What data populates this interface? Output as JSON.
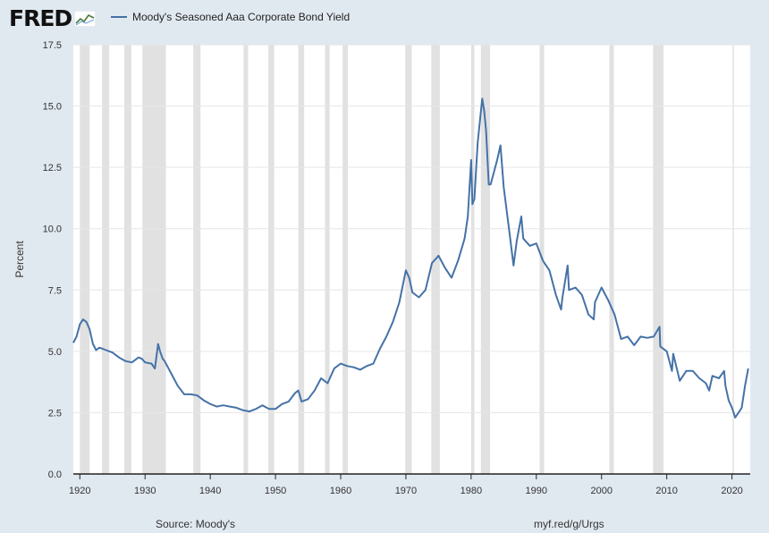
{
  "header": {
    "logo_text": "FRED",
    "logo_icon": "fred-graph-icon",
    "legend_label": "Moody's Seasoned Aaa Corporate Bond Yield"
  },
  "footer": {
    "source": "Source: Moody's",
    "url": "myf.red/g/Urgs"
  },
  "colors": {
    "page_background": "#e1e9f0",
    "plot_background": "#ffffff",
    "series_line": "#4572a7",
    "recession_band": "#e1e1e1",
    "gridline": "#e6e6e6"
  },
  "chart_data": {
    "type": "line",
    "title": "",
    "xlabel": "",
    "ylabel": "Percent",
    "xlim": [
      1919,
      2022.8
    ],
    "ylim": [
      0,
      17.5
    ],
    "y_ticks": [
      0,
      2.5,
      5,
      7.5,
      10,
      12.5,
      15,
      17.5
    ],
    "y_tick_labels": [
      "0.0",
      "2.5",
      "5.0",
      "7.5",
      "10.0",
      "12.5",
      "15.0",
      "17.5"
    ],
    "x_ticks": [
      1920,
      1930,
      1940,
      1950,
      1960,
      1970,
      1980,
      1990,
      2000,
      2010,
      2020
    ],
    "x_tick_labels": [
      "1920",
      "1930",
      "1940",
      "1950",
      "1960",
      "1970",
      "1980",
      "1990",
      "2000",
      "2010",
      "2020"
    ],
    "grid": "horizontal",
    "legend_position": "top-left",
    "recessions": [
      [
        1920.0,
        1921.5
      ],
      [
        1923.4,
        1924.5
      ],
      [
        1926.8,
        1927.9
      ],
      [
        1929.6,
        1933.2
      ],
      [
        1937.4,
        1938.5
      ],
      [
        1945.1,
        1945.8
      ],
      [
        1948.9,
        1949.8
      ],
      [
        1953.5,
        1954.4
      ],
      [
        1957.6,
        1958.3
      ],
      [
        1960.3,
        1961.1
      ],
      [
        1969.9,
        1970.9
      ],
      [
        1973.9,
        1975.2
      ],
      [
        1980.0,
        1980.5
      ],
      [
        1981.5,
        1982.9
      ],
      [
        1990.5,
        1991.2
      ],
      [
        2001.2,
        2001.9
      ],
      [
        2007.9,
        2009.5
      ],
      [
        2020.1,
        2020.3
      ]
    ],
    "series": [
      {
        "name": "Moody's Seasoned Aaa Corporate Bond Yield",
        "x": [
          1919.0,
          1919.5,
          1920.0,
          1920.5,
          1921.0,
          1921.5,
          1922.0,
          1922.5,
          1923.0,
          1924.0,
          1925.0,
          1926.0,
          1927.0,
          1928.0,
          1929.0,
          1929.5,
          1930.0,
          1931.0,
          1931.5,
          1932.0,
          1932.3,
          1932.7,
          1933.0,
          1934.0,
          1935.0,
          1936.0,
          1937.0,
          1938.0,
          1939.0,
          1940.0,
          1941.0,
          1942.0,
          1943.0,
          1944.0,
          1945.0,
          1946.0,
          1947.0,
          1948.0,
          1949.0,
          1950.0,
          1951.0,
          1952.0,
          1953.0,
          1953.5,
          1954.0,
          1955.0,
          1956.0,
          1957.0,
          1957.5,
          1958.0,
          1959.0,
          1960.0,
          1961.0,
          1962.0,
          1963.0,
          1964.0,
          1965.0,
          1966.0,
          1967.0,
          1968.0,
          1969.0,
          1970.0,
          1970.5,
          1971.0,
          1972.0,
          1973.0,
          1974.0,
          1974.7,
          1975.0,
          1976.0,
          1977.0,
          1978.0,
          1979.0,
          1979.5,
          1980.0,
          1980.2,
          1980.5,
          1981.0,
          1981.7,
          1982.0,
          1982.3,
          1982.7,
          1983.0,
          1984.0,
          1984.5,
          1985.0,
          1986.0,
          1986.5,
          1987.0,
          1987.7,
          1988.0,
          1989.0,
          1990.0,
          1991.0,
          1992.0,
          1993.0,
          1993.8,
          1994.0,
          1994.8,
          1995.0,
          1996.0,
          1997.0,
          1998.0,
          1998.8,
          1999.0,
          2000.0,
          2001.0,
          2002.0,
          2003.0,
          2004.0,
          2005.0,
          2006.0,
          2007.0,
          2008.0,
          2008.9,
          2009.0,
          2010.0,
          2010.8,
          2011.0,
          2012.0,
          2013.0,
          2014.0,
          2015.0,
          2016.0,
          2016.5,
          2017.0,
          2018.0,
          2018.8,
          2019.0,
          2019.5,
          2020.0,
          2020.5,
          2021.0,
          2021.5,
          2022.0,
          2022.5
        ],
        "values": [
          5.35,
          5.6,
          6.1,
          6.3,
          6.2,
          5.9,
          5.3,
          5.05,
          5.15,
          5.05,
          4.95,
          4.75,
          4.6,
          4.55,
          4.75,
          4.7,
          4.55,
          4.5,
          4.3,
          5.3,
          5.0,
          4.7,
          4.6,
          4.1,
          3.6,
          3.25,
          3.25,
          3.2,
          3.0,
          2.85,
          2.75,
          2.8,
          2.75,
          2.7,
          2.6,
          2.55,
          2.65,
          2.8,
          2.65,
          2.65,
          2.85,
          2.95,
          3.3,
          3.4,
          2.95,
          3.05,
          3.4,
          3.9,
          3.8,
          3.7,
          4.3,
          4.5,
          4.4,
          4.35,
          4.25,
          4.4,
          4.5,
          5.1,
          5.6,
          6.2,
          7.0,
          8.3,
          8.0,
          7.4,
          7.2,
          7.5,
          8.6,
          8.8,
          8.9,
          8.4,
          8.0,
          8.7,
          9.6,
          10.5,
          12.8,
          11.0,
          11.2,
          13.5,
          15.3,
          14.8,
          14.0,
          11.8,
          11.8,
          12.8,
          13.4,
          11.7,
          9.6,
          8.5,
          9.5,
          10.5,
          9.6,
          9.3,
          9.4,
          8.7,
          8.3,
          7.3,
          6.7,
          7.2,
          8.5,
          7.5,
          7.6,
          7.3,
          6.5,
          6.3,
          7.0,
          7.6,
          7.1,
          6.5,
          5.5,
          5.6,
          5.25,
          5.6,
          5.55,
          5.6,
          6.0,
          5.2,
          5.0,
          4.2,
          4.9,
          3.8,
          4.2,
          4.2,
          3.9,
          3.7,
          3.4,
          4.0,
          3.9,
          4.2,
          3.6,
          3.0,
          2.7,
          2.3,
          2.5,
          2.7,
          3.6,
          4.3
        ]
      }
    ]
  }
}
